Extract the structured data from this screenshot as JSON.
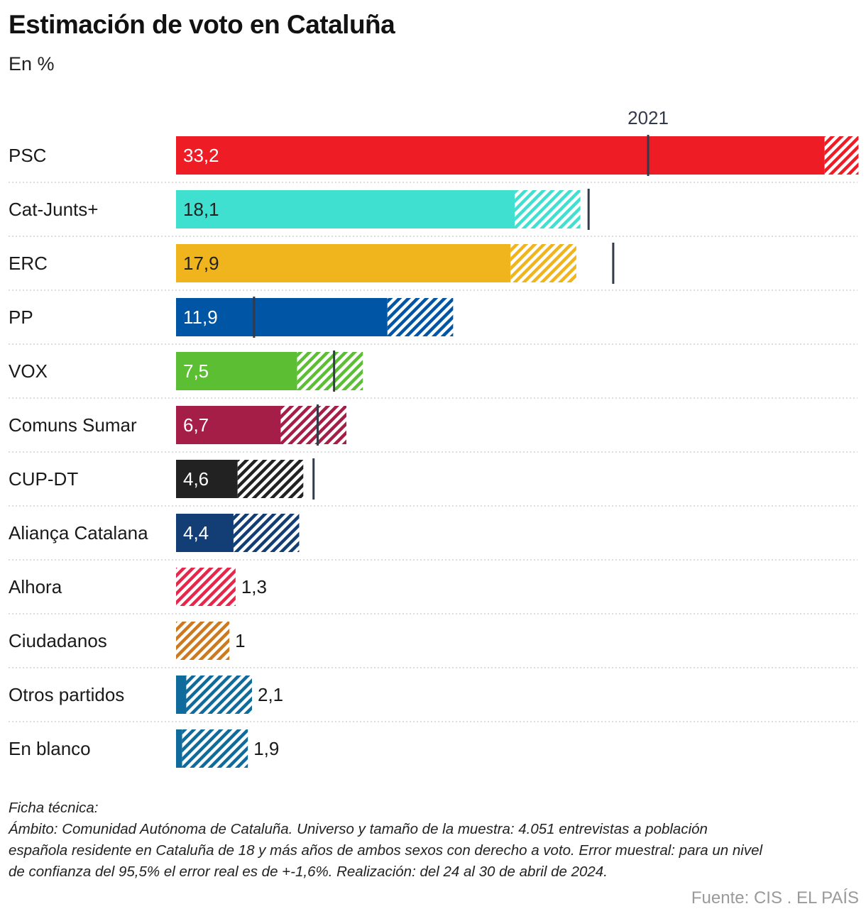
{
  "header": {
    "title": "Estimación de voto en Cataluña",
    "subtitle": "En %"
  },
  "chart_data": {
    "type": "bar",
    "orientation": "horizontal",
    "title": "Estimación de voto en Cataluña",
    "subtitle": "En %",
    "xlim": [
      0,
      33.2
    ],
    "reference_label": "2021",
    "categories": [
      "PSC",
      "Cat-Junts+",
      "ERC",
      "PP",
      "VOX",
      "Comuns Sumar",
      "CUP-DT",
      "Aliança Catalana",
      "Alhora",
      "Ciudadanos",
      "Otros partidos",
      "En blanco"
    ],
    "values": [
      33.2,
      18.1,
      17.9,
      11.9,
      7.5,
      6.7,
      4.6,
      4.4,
      1.3,
      1,
      2.1,
      1.9
    ],
    "value_labels": [
      "33,2",
      "18,1",
      "17,9",
      "11,9",
      "7,5",
      "6,7",
      "4,6",
      "4,4",
      "1,3",
      "1",
      "2,1",
      "1,9"
    ],
    "error_margin": 1.6,
    "results_2021": [
      23.0,
      20.1,
      21.3,
      3.8,
      7.7,
      6.9,
      6.7,
      null,
      null,
      null,
      null,
      null
    ],
    "colors": [
      "#ee1c25",
      "#40e0d0",
      "#f0b41c",
      "#0055a4",
      "#5cbf33",
      "#a51e48",
      "#222222",
      "#123e75",
      "#e8254a",
      "#cc7a1d",
      "#0f6b9b",
      "#0f6b9b"
    ],
    "label_text_colors": [
      "#ffffff",
      "#222222",
      "#222222",
      "#ffffff",
      "#ffffff",
      "#ffffff",
      "#ffffff",
      "#ffffff",
      "#222222",
      "#222222",
      "#222222",
      "#222222"
    ]
  },
  "notes": {
    "heading": "Ficha técnica:",
    "lines": [
      "Ámbito: Comunidad Autónoma de Cataluña. Universo y tamaño de la muestra: 4.051 entrevistas a población",
      "española residente en Cataluña de 18 y más años de ambos sexos con derecho a voto. Error muestral: para un nivel",
      "de confianza del 95,5% el error real es de +-1,6%. Realización: del 24 al 30 de abril de 2024."
    ]
  },
  "source": "Fuente: CIS . EL PAÍS"
}
